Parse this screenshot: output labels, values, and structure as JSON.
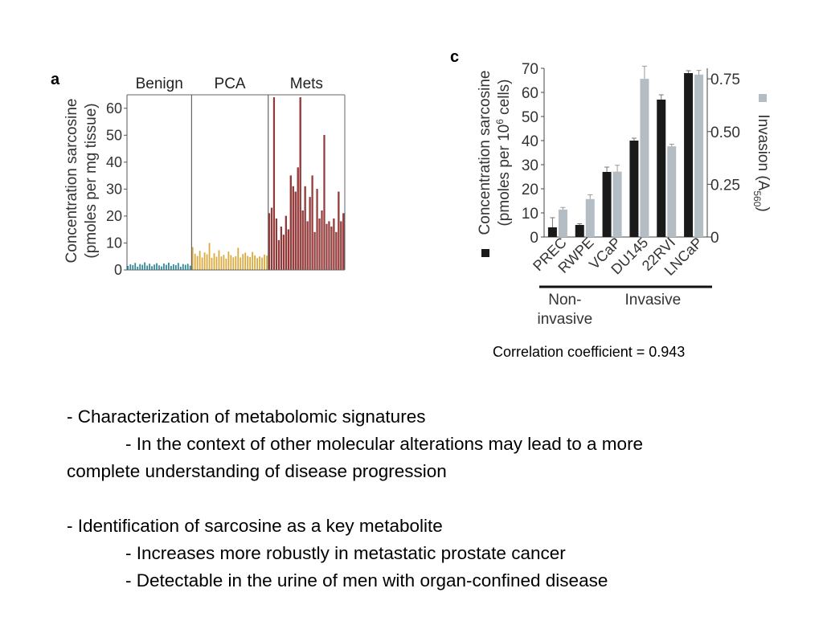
{
  "chart_data": [
    {
      "panel_label": "a",
      "type": "bar",
      "ylabel_lines": [
        "Concentration sarcosine",
        "(pmoles per mg tissue)"
      ],
      "ylim": [
        0,
        65
      ],
      "yticks": [
        0,
        10,
        20,
        30,
        40,
        50,
        60
      ],
      "colors": {
        "Benign": "#2e8a9c",
        "PCA": "#d9a93c",
        "Mets": "#a23a3a"
      },
      "groups": [
        {
          "name": "Benign",
          "values": [
            1.5,
            2.1,
            1.8,
            2.6,
            1.2,
            2.2,
            1.9,
            2.8,
            1.6,
            2.3,
            1.4,
            2.0,
            2.5,
            1.7,
            1.3,
            2.4,
            1.9,
            2.7,
            1.5,
            2.1,
            1.8,
            2.6,
            1.2,
            2.2,
            1.9,
            2.3,
            1.6
          ]
        },
        {
          "name": "PCA",
          "values": [
            8.5,
            6.0,
            5.2,
            7.1,
            4.6,
            6.5,
            5.8,
            10.0,
            4.5,
            6.2,
            4.9,
            7.3,
            5.0,
            5.6,
            4.2,
            6.8,
            5.5,
            4.7,
            5.1,
            8.2,
            4.6,
            5.9,
            6.4,
            5.2,
            4.8,
            6.7,
            5.4,
            4.4,
            5.0,
            4.6,
            5.7,
            5.3
          ]
        },
        {
          "name": "Mets",
          "values": [
            21,
            23,
            64,
            19,
            11,
            16,
            13,
            20,
            15,
            35,
            31,
            29,
            38,
            64,
            22,
            31,
            18,
            27,
            35,
            14,
            30,
            19,
            22,
            50,
            17,
            18,
            16,
            19,
            14,
            29,
            18,
            21
          ]
        }
      ]
    },
    {
      "panel_label": "c",
      "type": "bar",
      "categories": [
        "PREC",
        "RWPE",
        "VCaP",
        "DU145",
        "22RVI",
        "LNCaP"
      ],
      "ylabel_lines": [
        "Concentration sarcosine",
        "(pmoles per 10",
        "6",
        " cells)"
      ],
      "y2label": "Invasion (A",
      "y2label_sub": "560",
      "y2label_end": ")",
      "ylim": [
        0,
        70
      ],
      "yticks": [
        0,
        10,
        20,
        30,
        40,
        50,
        60,
        70
      ],
      "y2lim": [
        0,
        0.8
      ],
      "y2ticks": [
        "0",
        "0.25",
        "0.50",
        "0.75"
      ],
      "y2tick_values": [
        0,
        0.25,
        0.5,
        0.75
      ],
      "series": [
        {
          "values": [
            4,
            5,
            27,
            40,
            57,
            68
          ],
          "errors": [
            4,
            0.5,
            2,
            1,
            2,
            1
          ],
          "color": "#1a1a1a"
        },
        {
          "values": [
            0.13,
            0.18,
            0.31,
            0.75,
            0.43,
            0.77
          ],
          "errors": [
            0.01,
            0.02,
            0.03,
            0.06,
            0.01,
            0.02
          ],
          "color": "#b4bcc4"
        }
      ],
      "group_labels": [
        {
          "lines": [
            "Non-",
            "invasive"
          ],
          "categories": [
            "PREC",
            "RWPE"
          ]
        },
        {
          "lines": [
            "Invasive"
          ],
          "categories": [
            "VCaP",
            "DU145",
            "22RVI",
            "LNCaP"
          ]
        }
      ],
      "caption": "Correlation coefficient = 0.943"
    }
  ],
  "bullets": [
    {
      "level": 0,
      "text": "- Characterization of metabolomic signatures"
    },
    {
      "level": 1,
      "text": "- In the context of other molecular alterations may lead to a more"
    },
    {
      "level": 0,
      "text": "complete understanding of disease progression"
    },
    {
      "level": -1,
      "text": ""
    },
    {
      "level": 0,
      "text": "- Identification of sarcosine as a key metabolite"
    },
    {
      "level": 1,
      "text": "- Increases more robustly in metastatic prostate cancer"
    },
    {
      "level": 1,
      "text": "- Detectable in the urine of men with organ-confined disease"
    }
  ]
}
